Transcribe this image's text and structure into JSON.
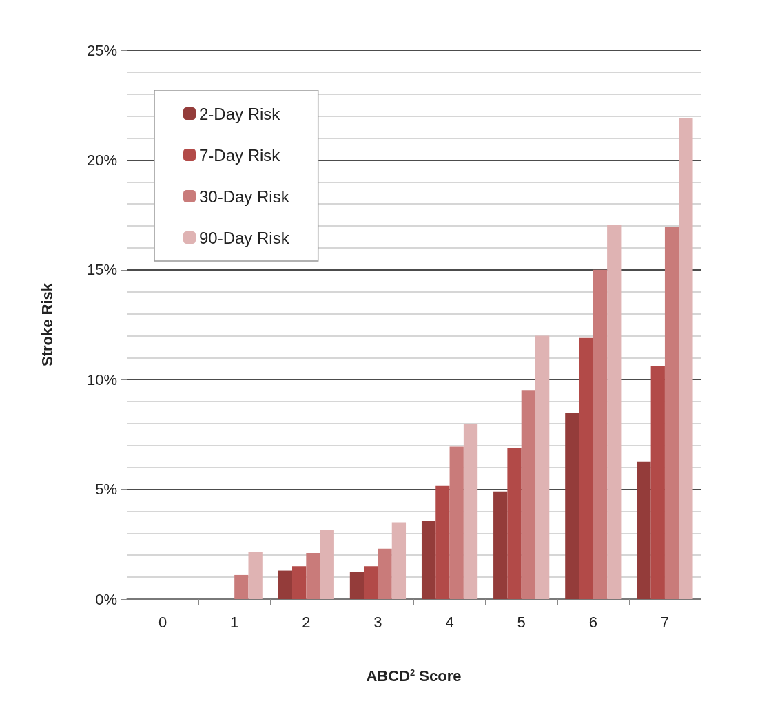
{
  "chart_data": {
    "type": "bar",
    "xlabel": "ABCD$^{2}$ Score",
    "ylabel": "Stroke Risk",
    "categories": [
      "0",
      "1",
      "2",
      "3",
      "4",
      "5",
      "6",
      "7"
    ],
    "series": [
      {
        "name": "2-Day Risk",
        "color": "#943c3a",
        "values": [
          0,
          0,
          1.3,
          1.25,
          3.55,
          4.9,
          8.5,
          6.25
        ]
      },
      {
        "name": "7-Day Risk",
        "color": "#b24a48",
        "values": [
          0,
          0,
          1.5,
          1.5,
          5.15,
          6.9,
          11.9,
          10.6
        ]
      },
      {
        "name": "30-Day Risk",
        "color": "#c97b7a",
        "values": [
          0,
          1.1,
          2.1,
          2.3,
          6.95,
          9.5,
          15.0,
          16.95
        ]
      },
      {
        "name": "90-Day Risk",
        "color": "#dfb3b3",
        "values": [
          0,
          2.15,
          3.15,
          3.5,
          8.0,
          12.0,
          17.05,
          21.9
        ]
      }
    ],
    "ylim": [
      0,
      25
    ],
    "yticks": [
      {
        "value": 0,
        "label": "0%"
      },
      {
        "value": 5,
        "label": "5%"
      },
      {
        "value": 10,
        "label": "10%"
      },
      {
        "value": 15,
        "label": "15%"
      },
      {
        "value": 20,
        "label": "20%"
      },
      {
        "value": 25,
        "label": "25%"
      }
    ],
    "grid": true,
    "legend": "top left"
  }
}
